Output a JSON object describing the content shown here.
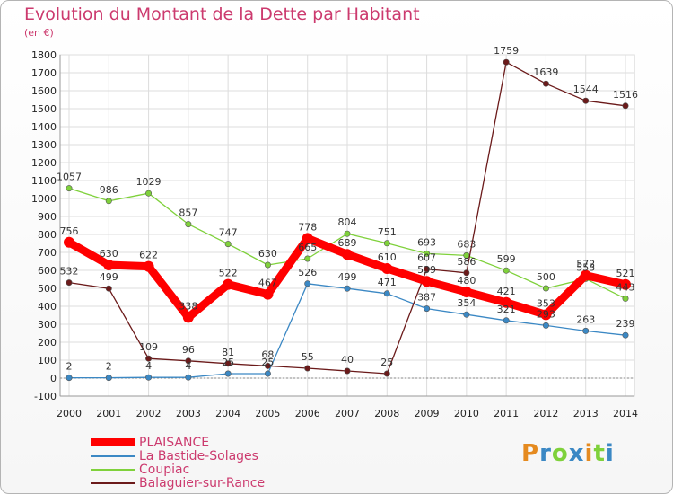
{
  "title": "Evolution du Montant de la Dette par Habitant",
  "unit": "(en €)",
  "brand": "Proxiti",
  "chart_data": {
    "type": "line",
    "x": [
      2000,
      2001,
      2002,
      2003,
      2004,
      2005,
      2006,
      2007,
      2008,
      2009,
      2010,
      2011,
      2012,
      2013,
      2014
    ],
    "ylim": [
      -100,
      1800
    ],
    "yticks": [
      -100,
      0,
      100,
      200,
      300,
      400,
      500,
      600,
      700,
      800,
      900,
      1000,
      1100,
      1200,
      1300,
      1400,
      1500,
      1600,
      1700,
      1800
    ],
    "grid": true,
    "legend_position": "bottom-left",
    "series": [
      {
        "name": "PLAISANCE",
        "color": "#ff0000",
        "values": [
          756,
          630,
          622,
          338,
          522,
          467,
          778,
          689,
          610,
          539,
          480,
          421,
          353,
          572,
          521
        ]
      },
      {
        "name": "La Bastide-Solages",
        "color": "#3b88c4",
        "values": [
          2,
          2,
          4,
          4,
          25,
          25,
          526,
          499,
          471,
          387,
          354,
          321,
          293,
          263,
          239
        ]
      },
      {
        "name": "Coupiac",
        "color": "#7fd13b",
        "values": [
          1057,
          986,
          1029,
          857,
          747,
          630,
          665,
          804,
          751,
          693,
          683,
          599,
          500,
          553,
          443
        ]
      },
      {
        "name": "Balaguier-sur-Rance",
        "color": "#6b1a1a",
        "values": [
          532,
          499,
          109,
          96,
          81,
          68,
          55,
          40,
          25,
          607,
          586,
          1759,
          1639,
          1544,
          1516
        ]
      }
    ]
  }
}
